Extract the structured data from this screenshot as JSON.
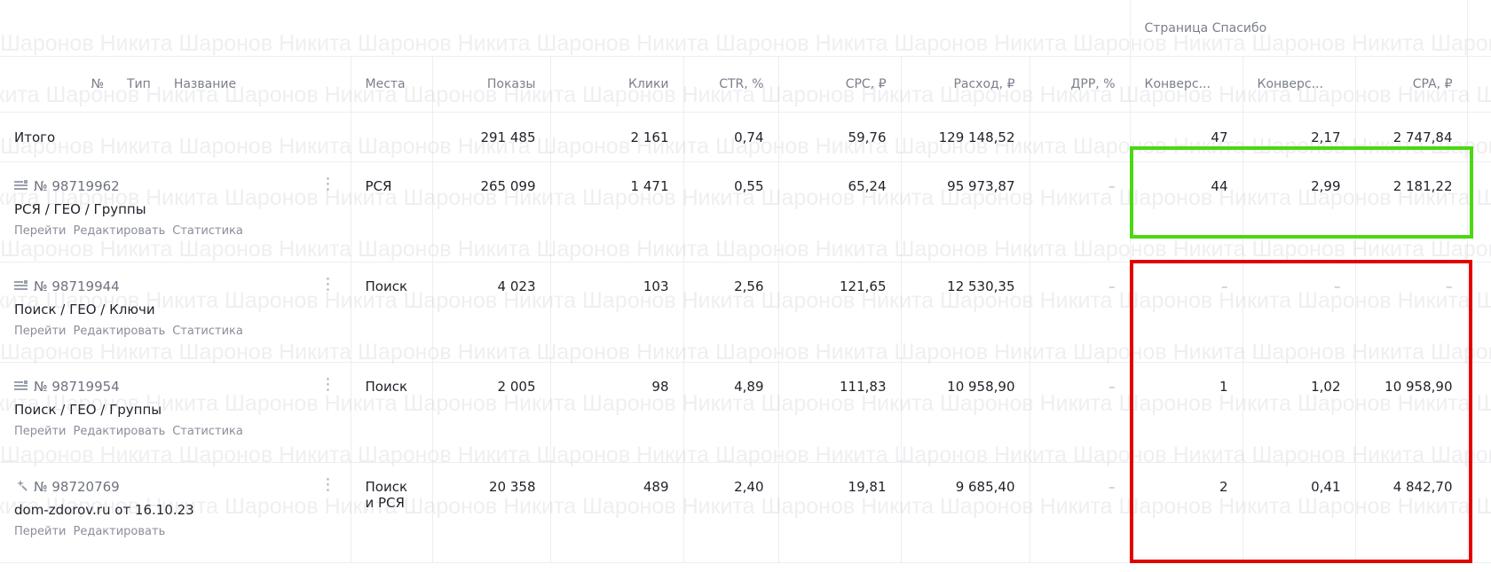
{
  "watermark": "Шаронов Никита",
  "header": {
    "group_label": "Страница Спасибо",
    "col_no": "№",
    "col_type": "Тип",
    "col_name": "Название",
    "col_places": "Места",
    "col_impressions": "Показы",
    "col_clicks": "Клики",
    "col_ctr": "CTR, %",
    "col_cpc": "CPC, ₽",
    "col_spend": "Расход, ₽",
    "col_drr": "ДРР, %",
    "col_conv1": "Конверс...",
    "col_conv2": "Конверс...",
    "col_cpa": "CPA, ₽"
  },
  "total": {
    "label": "Итого",
    "impressions": "291 485",
    "clicks": "2 161",
    "ctr": "0,74",
    "cpc": "59,76",
    "spend": "129 148,52",
    "drr": "",
    "conv1": "47",
    "conv2": "2,17",
    "cpa": "2 747,84"
  },
  "rows": [
    {
      "icon": "text-ad-icon",
      "id": "№ 98719962",
      "name": "РСЯ / ГЕО / Группы",
      "links": [
        "Перейти",
        "Редактировать",
        "Статистика"
      ],
      "places": "РСЯ",
      "impressions": "265 099",
      "clicks": "1 471",
      "ctr": "0,55",
      "cpc": "65,24",
      "spend": "95 973,87",
      "drr": "–",
      "conv1": "44",
      "conv2": "2,99",
      "cpa": "2 181,22"
    },
    {
      "icon": "text-ad-icon",
      "id": "№ 98719944",
      "name": "Поиск / ГЕО / Ключи",
      "links": [
        "Перейти",
        "Редактировать",
        "Статистика"
      ],
      "places": "Поиск",
      "impressions": "4 023",
      "clicks": "103",
      "ctr": "2,56",
      "cpc": "121,65",
      "spend": "12 530,35",
      "drr": "–",
      "conv1": "–",
      "conv2": "–",
      "cpa": "–"
    },
    {
      "icon": "text-ad-icon",
      "id": "№ 98719954",
      "name": "Поиск / ГЕО / Группы",
      "links": [
        "Перейти",
        "Редактировать",
        "Статистика"
      ],
      "places": "Поиск",
      "impressions": "2 005",
      "clicks": "98",
      "ctr": "4,89",
      "cpc": "111,83",
      "spend": "10 958,90",
      "drr": "–",
      "conv1": "1",
      "conv2": "1,02",
      "cpa": "10 958,90"
    },
    {
      "icon": "magic-wand-icon",
      "id": "№ 98720769",
      "name": "dom-zdorov.ru от 16.10.23",
      "links": [
        "Перейти",
        "Редактировать"
      ],
      "places": "Поиск и РСЯ",
      "impressions": "20 358",
      "clicks": "489",
      "ctr": "2,40",
      "cpc": "19,81",
      "spend": "9 685,40",
      "drr": "–",
      "conv1": "2",
      "conv2": "0,41",
      "cpa": "4 842,70"
    }
  ],
  "highlight_colors": {
    "green": "#4cd810",
    "red": "#e20000"
  }
}
